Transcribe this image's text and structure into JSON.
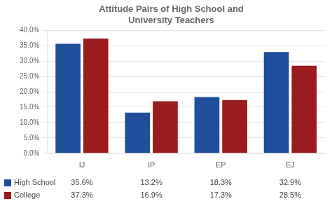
{
  "chart_data": {
    "type": "bar",
    "title": "Attitude Pairs of High School and\nUniversity Teachers",
    "categories": [
      "IJ",
      "IP",
      "EP",
      "EJ"
    ],
    "series": [
      {
        "name": "High School",
        "color": "#1F4E9B",
        "values": [
          35.6,
          13.2,
          18.3,
          32.9
        ],
        "value_labels": [
          "35.6%",
          "13.2%",
          "18.3%",
          "32.9%"
        ]
      },
      {
        "name": "College",
        "color": "#9B1C1C",
        "values": [
          37.3,
          16.9,
          17.3,
          28.5
        ],
        "value_labels": [
          "37.3%",
          "16.9%",
          "17.3%",
          "28.5%"
        ]
      }
    ],
    "ylim": [
      0,
      40
    ],
    "yticks": [
      {
        "value": 0,
        "label": "0.0%"
      },
      {
        "value": 5,
        "label": "5.0%"
      },
      {
        "value": 10,
        "label": "10.0%"
      },
      {
        "value": 15,
        "label": "15.0%"
      },
      {
        "value": 20,
        "label": "20.0%"
      },
      {
        "value": 25,
        "label": "25.0%"
      },
      {
        "value": 30,
        "label": "30.0%"
      },
      {
        "value": 35,
        "label": "35.0%"
      },
      {
        "value": 40,
        "label": "40.0%"
      }
    ],
    "grid": true,
    "legend": "bottom",
    "data_labels": true
  }
}
